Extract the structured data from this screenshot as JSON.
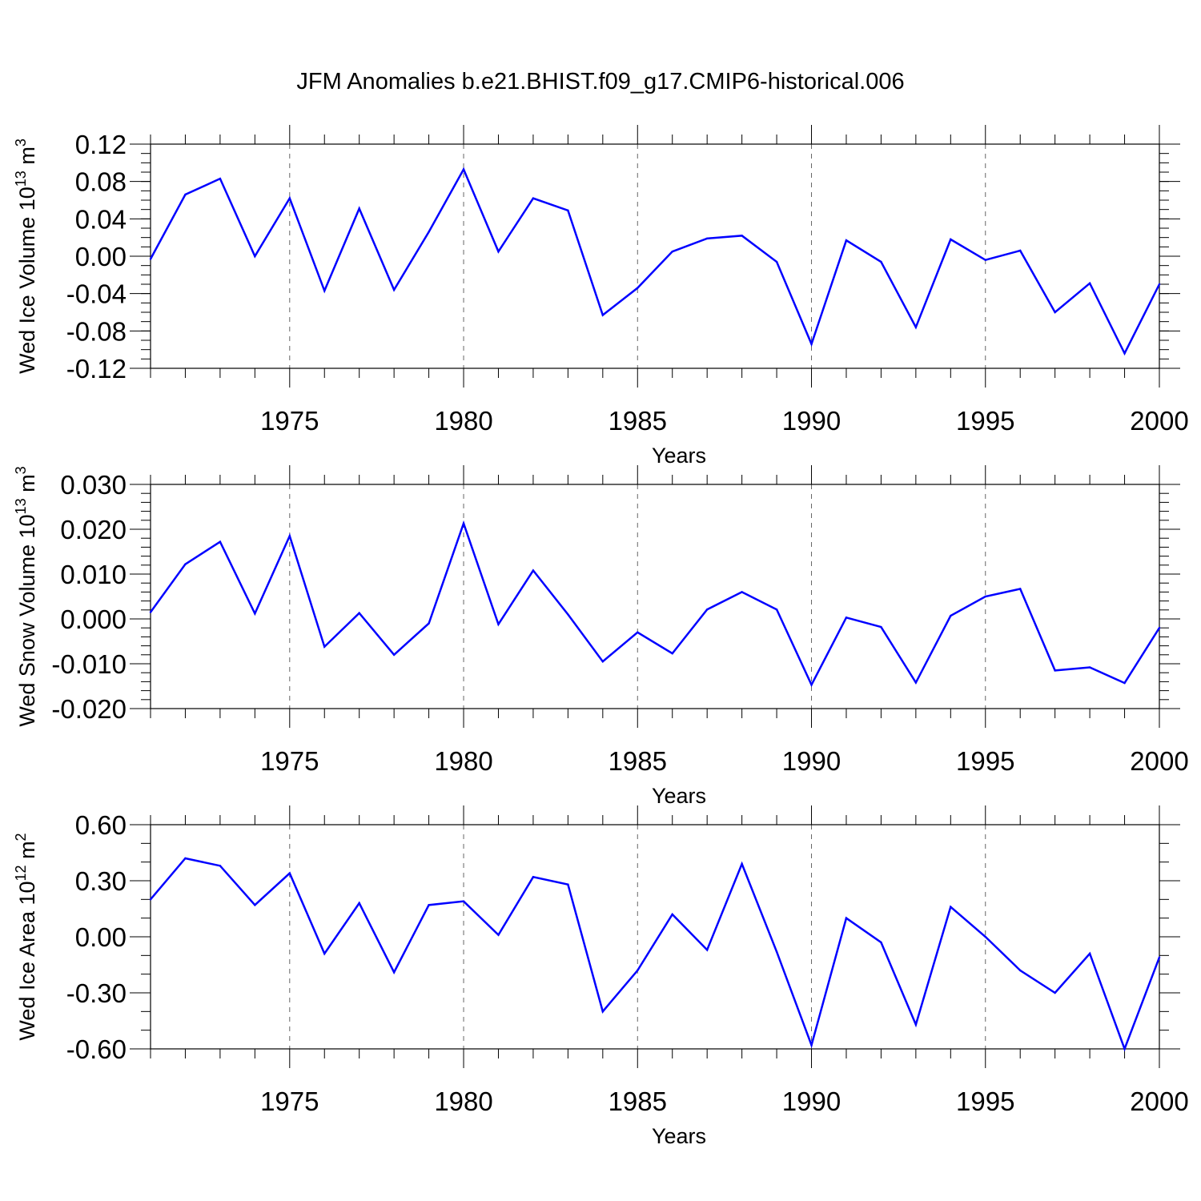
{
  "figure": {
    "title": "JFM Anomalies b.e21.BHIST.f09_g17.CMIP6-historical.006",
    "line_color": "#0000ff",
    "grid_color": "#666666"
  },
  "chart_data": [
    {
      "type": "line",
      "title": "",
      "xlabel": "Years",
      "ylabel": {
        "text": "Wed Ice Volume 10",
        "sup": "13",
        "unit": " m",
        "unit_sup": "3"
      },
      "x": [
        1971,
        1972,
        1973,
        1974,
        1975,
        1976,
        1977,
        1978,
        1979,
        1980,
        1981,
        1982,
        1983,
        1984,
        1985,
        1986,
        1987,
        1988,
        1989,
        1990,
        1991,
        1992,
        1993,
        1994,
        1995,
        1996,
        1997,
        1998,
        1999,
        2000
      ],
      "xlim": [
        1971,
        2000
      ],
      "xticks": [
        "1975",
        "1980",
        "1985",
        "1990",
        "1995",
        "2000"
      ],
      "ylim": [
        -0.12,
        0.12
      ],
      "yticks": [
        "0.12",
        "0.08",
        "0.04",
        "0.00",
        "-0.04",
        "-0.08",
        "-0.12"
      ],
      "ytick_values": [
        0.12,
        0.08,
        0.04,
        0.0,
        -0.04,
        -0.08,
        -0.12
      ],
      "y_minor_step": 0.01,
      "grid": "vertical dashed at major x ticks",
      "series": [
        {
          "values": [
            -0.003,
            0.066,
            0.083,
            0.0,
            0.062,
            -0.037,
            0.051,
            -0.036,
            0.026,
            0.093,
            0.005,
            0.062,
            0.049,
            -0.063,
            -0.034,
            0.005,
            0.019,
            0.022,
            -0.006,
            -0.094,
            0.017,
            -0.006,
            -0.076,
            0.018,
            -0.004,
            0.006,
            -0.06,
            -0.029,
            -0.104,
            -0.03
          ]
        }
      ]
    },
    {
      "type": "line",
      "title": "",
      "xlabel": "Years",
      "ylabel": {
        "text": "Wed Snow Volume 10",
        "sup": "13",
        "unit": " m",
        "unit_sup": "3"
      },
      "x": [
        1971,
        1972,
        1973,
        1974,
        1975,
        1976,
        1977,
        1978,
        1979,
        1980,
        1981,
        1982,
        1983,
        1984,
        1985,
        1986,
        1987,
        1988,
        1989,
        1990,
        1991,
        1992,
        1993,
        1994,
        1995,
        1996,
        1997,
        1998,
        1999,
        2000
      ],
      "xlim": [
        1971,
        2000
      ],
      "xticks": [
        "1975",
        "1980",
        "1985",
        "1990",
        "1995",
        "2000"
      ],
      "ylim": [
        -0.02,
        0.03
      ],
      "yticks": [
        "0.030",
        "0.020",
        "0.010",
        "0.000",
        "-0.010",
        "-0.020"
      ],
      "ytick_values": [
        0.03,
        0.02,
        0.01,
        0.0,
        -0.01,
        -0.02
      ],
      "y_minor_step": 0.002,
      "grid": "vertical dashed at major x ticks",
      "series": [
        {
          "values": [
            0.0015,
            0.0122,
            0.0172,
            0.0012,
            0.0185,
            -0.0062,
            0.0013,
            -0.008,
            -0.001,
            0.0213,
            -0.0012,
            0.0108,
            0.001,
            -0.0095,
            -0.003,
            -0.0077,
            0.0021,
            0.006,
            0.0021,
            -0.0147,
            0.0003,
            -0.0018,
            -0.0142,
            0.0007,
            0.005,
            0.0067,
            -0.0115,
            -0.0108,
            -0.0143,
            -0.002
          ]
        }
      ]
    },
    {
      "type": "line",
      "title": "",
      "xlabel": "Years",
      "ylabel": {
        "text": "Wed Ice Area 10",
        "sup": "12",
        "unit": " m",
        "unit_sup": "2"
      },
      "x": [
        1971,
        1972,
        1973,
        1974,
        1975,
        1976,
        1977,
        1978,
        1979,
        1980,
        1981,
        1982,
        1983,
        1984,
        1985,
        1986,
        1987,
        1988,
        1989,
        1990,
        1991,
        1992,
        1993,
        1994,
        1995,
        1996,
        1997,
        1998,
        1999,
        2000
      ],
      "xlim": [
        1971,
        2000
      ],
      "xticks": [
        "1975",
        "1980",
        "1985",
        "1990",
        "1995",
        "2000"
      ],
      "ylim": [
        -0.6,
        0.6
      ],
      "yticks": [
        "0.60",
        "0.30",
        "0.00",
        "-0.30",
        "-0.60"
      ],
      "ytick_values": [
        0.6,
        0.3,
        0.0,
        -0.3,
        -0.6
      ],
      "y_minor_step": 0.1,
      "grid": "vertical dashed at major x ticks",
      "series": [
        {
          "values": [
            0.2,
            0.42,
            0.38,
            0.17,
            0.34,
            -0.09,
            0.18,
            -0.19,
            0.17,
            0.19,
            0.01,
            0.32,
            0.28,
            -0.4,
            -0.18,
            0.12,
            -0.07,
            0.39,
            -0.08,
            -0.58,
            0.1,
            -0.03,
            -0.47,
            0.16,
            0.0,
            -0.18,
            -0.3,
            -0.09,
            -0.6,
            -0.11
          ]
        }
      ]
    }
  ]
}
